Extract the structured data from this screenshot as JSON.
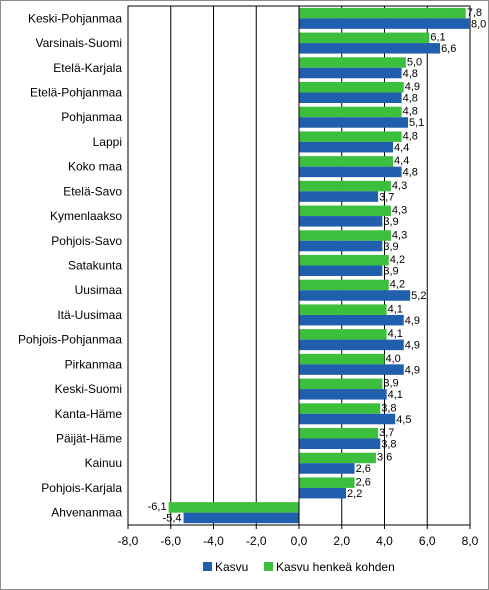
{
  "chart_data": {
    "type": "bar",
    "orientation": "horizontal",
    "categories": [
      "Keski-Pohjanmaa",
      "Varsinais-Suomi",
      "Etelä-Karjala",
      "Etelä-Pohjanmaa",
      "Pohjanmaa",
      "Lappi",
      "Koko maa",
      "Etelä-Savo",
      "Kymenlaakso",
      "Pohjois-Savo",
      "Satakunta",
      "Uusimaa",
      "Itä-Uusimaa",
      "Pohjois-Pohjanmaa",
      "Pirkanmaa",
      "Keski-Suomi",
      "Kanta-Häme",
      "Päijät-Häme",
      "Kainuu",
      "Pohjois-Karjala",
      "Ahvenanmaa"
    ],
    "series": [
      {
        "name": "Kasvu",
        "color": "#1f5fad",
        "values": [
          8.0,
          6.6,
          4.8,
          4.8,
          5.1,
          4.4,
          4.8,
          3.7,
          3.9,
          3.9,
          3.9,
          5.2,
          4.9,
          4.9,
          4.9,
          4.1,
          4.5,
          3.8,
          2.6,
          2.2,
          -5.4
        ],
        "labels": [
          "8,0",
          "6,6",
          "4,8",
          "4,8",
          "5,1",
          "4,4",
          "4,8",
          "3,7",
          "3,9",
          "3,9",
          "3,9",
          "5,2",
          "4,9",
          "4,9",
          "4,9",
          "4,1",
          "4,5",
          "3,8",
          "2,6",
          "2,2",
          "-5,4"
        ]
      },
      {
        "name": "Kasvu henkeä kohden",
        "color": "#3cbf3c",
        "values": [
          7.8,
          6.1,
          5.0,
          4.9,
          4.8,
          4.8,
          4.4,
          4.3,
          4.3,
          4.3,
          4.2,
          4.2,
          4.1,
          4.1,
          4.0,
          3.9,
          3.8,
          3.7,
          3.6,
          2.6,
          -6.1
        ],
        "labels": [
          "7,8",
          "6,1",
          "5,0",
          "4,9",
          "4,8",
          "4,8",
          "4,4",
          "4,3",
          "4,3",
          "4,3",
          "4,2",
          "4,2",
          "4,1",
          "4,1",
          "4,0",
          "3,9",
          "3,8",
          "3,7",
          "3,6",
          "2,6",
          "-6,1"
        ]
      }
    ],
    "xlim": [
      -8,
      8
    ],
    "xticks": [
      -8,
      -6,
      -4,
      -2,
      0,
      2,
      4,
      6,
      8
    ],
    "xtick_labels": [
      "-8,0",
      "-6,0",
      "-4,0",
      "-2,0",
      "0,0",
      "2,0",
      "4,0",
      "6,0",
      "8,0"
    ],
    "grid": true,
    "legend_position": "bottom-right"
  }
}
